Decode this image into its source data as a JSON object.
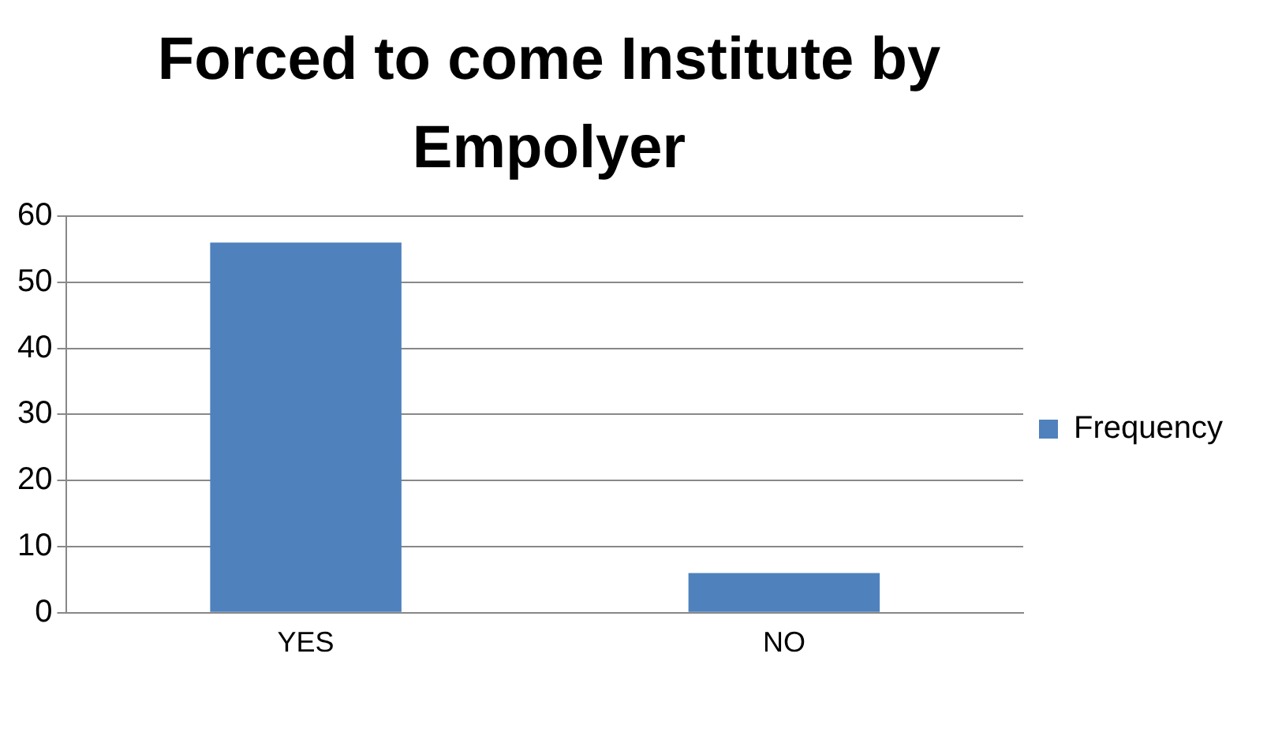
{
  "chart_data": {
    "type": "bar",
    "title": "Forced to come Institute by Empolyer",
    "categories": [
      "YES",
      "NO"
    ],
    "series": [
      {
        "name": "Frequency",
        "color": "#4f81bd",
        "values": [
          56,
          6
        ]
      }
    ],
    "ylim": [
      0,
      60
    ],
    "yticks": [
      0,
      10,
      20,
      30,
      40,
      50,
      60
    ],
    "grid": "y",
    "legend": "right"
  }
}
